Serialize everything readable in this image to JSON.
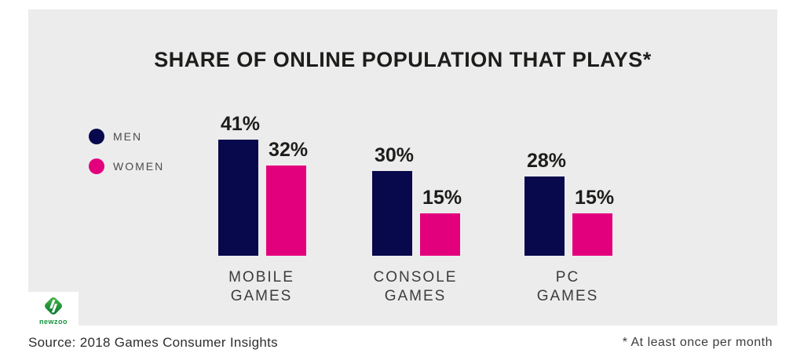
{
  "title": "SHARE OF ONLINE POPULATION THAT PLAYS*",
  "chart_data": {
    "type": "bar",
    "categories": [
      "MOBILE GAMES",
      "CONSOLE GAMES",
      "PC GAMES"
    ],
    "series": [
      {
        "name": "MEN",
        "color": "#08084d",
        "values": [
          41,
          30,
          28
        ]
      },
      {
        "name": "WOMEN",
        "color": "#e3007d",
        "values": [
          32,
          15,
          15
        ]
      }
    ],
    "value_suffix": "%",
    "value_labels": true,
    "grid": false,
    "legend_position": "left",
    "ylim": [
      0,
      45
    ],
    "xlabel": "",
    "ylabel": ""
  },
  "footer": {
    "source": "Source: 2018 Games Consumer Insights",
    "footnote": "* At least once per month"
  },
  "logo": {
    "text": "newzoo",
    "color": "#12953a"
  },
  "colors": {
    "card_background": "#ececec",
    "page_background": "#ffffff",
    "text_dark": "#1d1d1b"
  }
}
